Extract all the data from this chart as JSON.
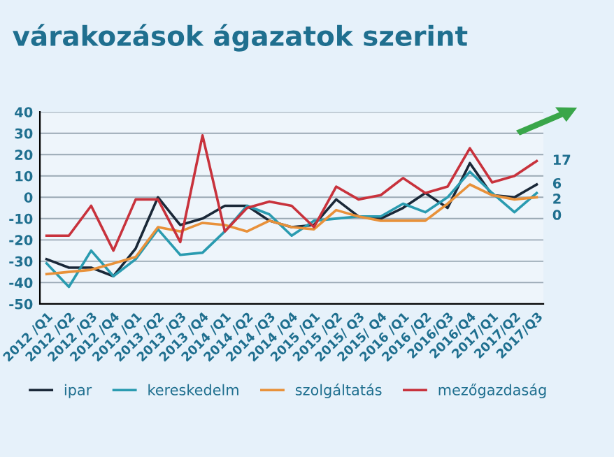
{
  "chart_data": {
    "type": "line",
    "title": "várakozások ágazatok szerint",
    "categories": [
      "2012 /Q1",
      "2012 /Q2",
      "2012 /Q3",
      "2012 /Q4",
      "2013 /Q1",
      "2013 /Q2",
      "2013 /Q3",
      "2013 /Q4",
      "2014 /Q1",
      "2014 /Q2",
      "2014 /Q3",
      "2014 /Q4",
      "2015 /Q1",
      "2015 /Q2",
      "2015/ Q3",
      "2015/ Q4",
      "2016 /Q1",
      "2016 /Q2",
      "2016/Q3",
      "2016/Q4",
      "2017/Q1",
      "2017/Q2",
      "2017/Q3"
    ],
    "series": [
      {
        "name": "ipar",
        "color": "#1a2838",
        "values": [
          -29,
          -33,
          -33,
          -37,
          -24,
          0,
          -13,
          -10,
          -4,
          -4,
          -11,
          -14,
          -13,
          -1,
          -9,
          -10,
          -5,
          2,
          -5,
          16,
          1,
          0,
          6
        ],
        "value_labels": [
          null,
          null,
          null,
          null,
          null,
          null,
          null,
          null,
          null,
          null,
          null,
          null,
          null,
          null,
          null,
          null,
          null,
          null,
          null,
          null,
          null,
          null,
          "6"
        ]
      },
      {
        "name": "kereskedelm",
        "color": "#2a9bb0",
        "values": [
          -31,
          -42,
          -25,
          -37,
          -29,
          -15,
          -27,
          -26,
          -16,
          -4,
          -8,
          -18,
          -11,
          -10,
          -9,
          -9,
          -3,
          -7,
          0,
          12,
          2,
          -7,
          2
        ],
        "value_labels": [
          null,
          null,
          null,
          null,
          null,
          null,
          null,
          null,
          null,
          null,
          null,
          null,
          null,
          null,
          null,
          null,
          null,
          null,
          null,
          null,
          null,
          null,
          "2"
        ]
      },
      {
        "name": "szolgáltatás",
        "color": "#e8913a",
        "values": [
          -36,
          -35,
          -34,
          -31,
          -28,
          -14,
          -16,
          -12,
          -13,
          -16,
          -11,
          -14,
          -15,
          -6,
          -9,
          -11,
          -11,
          -11,
          -3,
          6,
          1,
          -1,
          0
        ],
        "value_labels": [
          null,
          null,
          null,
          null,
          null,
          null,
          null,
          null,
          null,
          null,
          null,
          null,
          null,
          null,
          null,
          null,
          null,
          null,
          null,
          null,
          null,
          null,
          "0"
        ]
      },
      {
        "name": "mezőgazdaság",
        "color": "#c8323c",
        "values": [
          -18,
          -18,
          -4,
          -25,
          -1,
          -1,
          -21,
          29,
          -16,
          -5,
          -2,
          -4,
          -14,
          5,
          -1,
          1,
          9,
          2,
          5,
          23,
          7,
          10,
          17
        ],
        "value_labels": [
          null,
          null,
          null,
          null,
          null,
          null,
          null,
          null,
          null,
          null,
          null,
          null,
          null,
          null,
          null,
          null,
          null,
          null,
          null,
          null,
          null,
          null,
          "17"
        ]
      }
    ],
    "ylim": [
      -50,
      40
    ],
    "yticks": [
      -50,
      -40,
      -30,
      -20,
      -10,
      0,
      10,
      20,
      30,
      40
    ],
    "grid": "y",
    "legend": "bottom",
    "marker": "none",
    "line_style": "solid"
  }
}
